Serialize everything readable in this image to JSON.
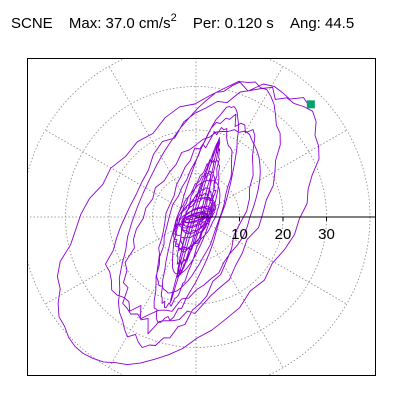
{
  "header": {
    "station": "SCNE",
    "max_label": "Max:",
    "max_value": "37.0",
    "max_unit_base": "cm/s",
    "max_unit_exp": "2",
    "per_label": "Per:",
    "per_value": "0.120 s",
    "ang_label": "Ang:",
    "ang_value": "44.5"
  },
  "chart_data": {
    "type": "scatter",
    "title": "SCNE  Max: 37.0 cm/s2  Per: 0.120 s  Ang: 44.5",
    "xlabel": "",
    "ylabel": "",
    "grid": "polar dotted rings and radial lines",
    "radial_ticks": [
      10,
      20,
      30
    ],
    "radial_tick_labels": [
      "10",
      "20",
      "30"
    ],
    "max_radius": 37.0,
    "angle_deg": 44.5,
    "peak_marker": {
      "x": 26.4,
      "y": 25.9
    },
    "colors": {
      "trace": "#8c00d4",
      "marker": "#00a36c",
      "grid": "#888888",
      "axis": "#000000"
    }
  }
}
